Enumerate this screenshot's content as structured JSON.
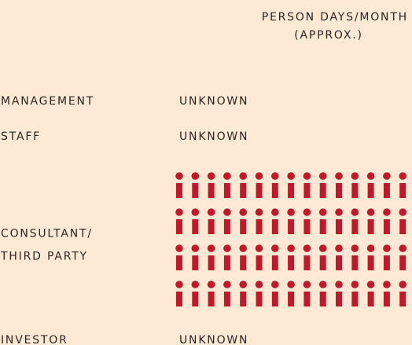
{
  "header": {
    "title": "PERSON DAYS/MONTH",
    "subtitle": "(APPROX.)"
  },
  "rows": [
    {
      "label": [
        "MANAGEMENT"
      ],
      "value": "UNKNOWN"
    },
    {
      "label": [
        "STAFF"
      ],
      "value": "UNKNOWN"
    },
    {
      "label": [
        "CONSULTANT/",
        "THIRD PARTY"
      ],
      "icons": 60,
      "icons_per_row": 15,
      "color": "#c2182b"
    },
    {
      "label": [
        "INVESTOR"
      ],
      "value": "UNKNOWN"
    }
  ]
}
